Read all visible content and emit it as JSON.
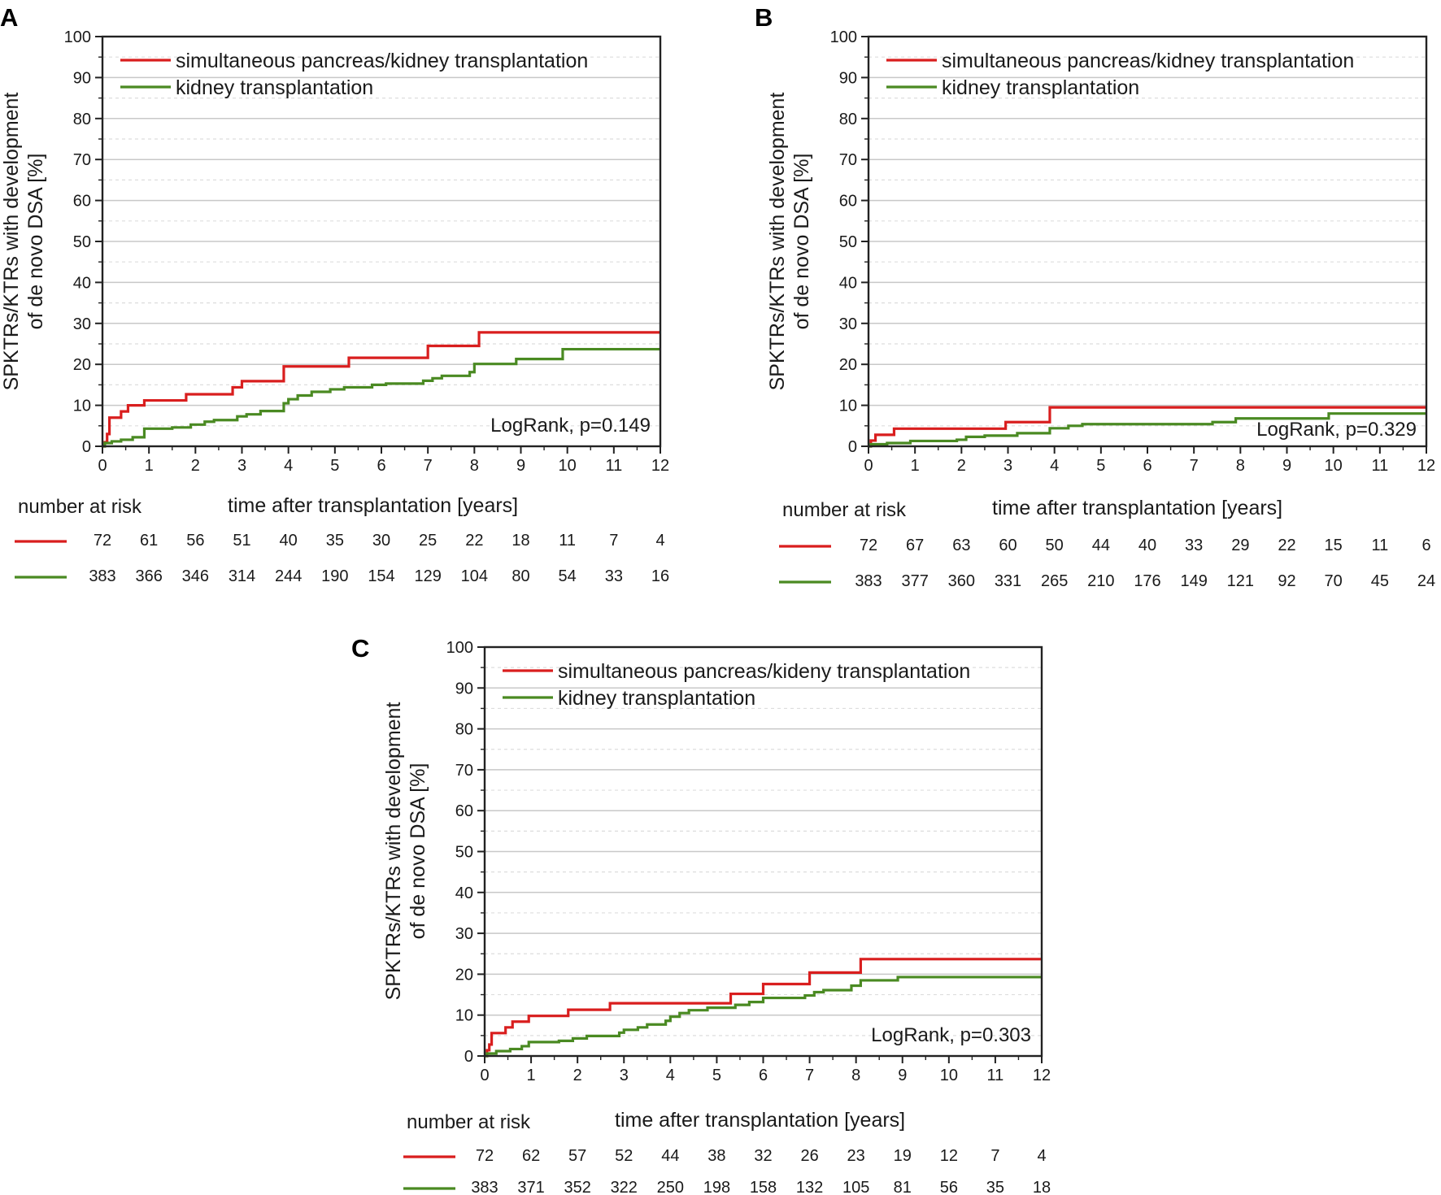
{
  "colors": {
    "spk": "#d91e1e",
    "kidney": "#4a8a22"
  },
  "shared": {
    "ylabel_line1": "SPKTRs/KTRs with development",
    "ylabel_line2": "of de novo DSA [%]",
    "risk_title": "number at risk",
    "xlabel": "time after transplantation [years]"
  },
  "chart_data": [
    {
      "panel": "A",
      "type": "line",
      "title": "",
      "xlabel": "time after transplantation [years]",
      "ylabel": "SPKTRs/KTRs with development of de novo DSA [%]",
      "xlim": [
        0,
        12
      ],
      "ylim": [
        0,
        100
      ],
      "x_ticks": [
        "0",
        "1",
        "2",
        "3",
        "4",
        "5",
        "6",
        "7",
        "8",
        "9",
        "10",
        "11",
        "12"
      ],
      "y_ticks": [
        "0",
        "10",
        "20",
        "30",
        "40",
        "50",
        "60",
        "70",
        "80",
        "90",
        "100"
      ],
      "grid": "horizontal",
      "legend_position": "top-left",
      "annotation": "LogRank, p=0.149",
      "series": [
        {
          "name": "simultaneous pancreas/kidney transplantation",
          "steps": [
            [
              0,
              0
            ],
            [
              0.05,
              1
            ],
            [
              0.1,
              3
            ],
            [
              0.15,
              7
            ],
            [
              0.4,
              8.5
            ],
            [
              0.55,
              10
            ],
            [
              0.9,
              11.2
            ],
            [
              1.8,
              12.7
            ],
            [
              2.8,
              14.4
            ],
            [
              3.0,
              15.9
            ],
            [
              3.9,
              19.5
            ],
            [
              5.3,
              21.6
            ],
            [
              7.0,
              24.5
            ],
            [
              8.1,
              27.8
            ],
            [
              12,
              27.8
            ]
          ],
          "at_risk": [
            "72",
            "61",
            "56",
            "51",
            "40",
            "35",
            "30",
            "25",
            "22",
            "18",
            "11",
            "7",
            "4"
          ]
        },
        {
          "name": "kidney transplantation",
          "steps": [
            [
              0,
              0
            ],
            [
              0.05,
              0.8
            ],
            [
              0.2,
              1.2
            ],
            [
              0.4,
              1.6
            ],
            [
              0.65,
              2.2
            ],
            [
              0.9,
              4.3
            ],
            [
              1.5,
              4.6
            ],
            [
              1.9,
              5.3
            ],
            [
              2.2,
              6.0
            ],
            [
              2.4,
              6.4
            ],
            [
              2.9,
              7.3
            ],
            [
              3.1,
              7.8
            ],
            [
              3.4,
              8.6
            ],
            [
              3.9,
              10.5
            ],
            [
              4.0,
              11.5
            ],
            [
              4.2,
              12.4
            ],
            [
              4.5,
              13.3
            ],
            [
              4.9,
              13.9
            ],
            [
              5.2,
              14.4
            ],
            [
              5.8,
              15.0
            ],
            [
              6.1,
              15.3
            ],
            [
              6.9,
              16.0
            ],
            [
              7.1,
              16.6
            ],
            [
              7.3,
              17.2
            ],
            [
              7.9,
              18.1
            ],
            [
              8.0,
              20.1
            ],
            [
              8.9,
              21.3
            ],
            [
              9.9,
              23.7
            ],
            [
              12,
              23.7
            ]
          ],
          "at_risk": [
            "383",
            "366",
            "346",
            "314",
            "244",
            "190",
            "154",
            "129",
            "104",
            "80",
            "54",
            "33",
            "16"
          ]
        }
      ]
    },
    {
      "panel": "B",
      "type": "line",
      "title": "",
      "xlabel": "time after transplantation [years]",
      "ylabel": "SPKTRs/KTRs with development of de novo DSA [%]",
      "xlim": [
        0,
        12
      ],
      "ylim": [
        0,
        100
      ],
      "x_ticks": [
        "0",
        "1",
        "2",
        "3",
        "4",
        "5",
        "6",
        "7",
        "8",
        "9",
        "10",
        "11",
        "12"
      ],
      "y_ticks": [
        "0",
        "10",
        "20",
        "30",
        "40",
        "50",
        "60",
        "70",
        "80",
        "90",
        "100"
      ],
      "grid": "horizontal",
      "legend_position": "top-left",
      "annotation": "LogRank, p=0.329",
      "series": [
        {
          "name": "simultaneous pancreas/kidney transplantation",
          "steps": [
            [
              0,
              0
            ],
            [
              0.05,
              1.4
            ],
            [
              0.15,
              2.8
            ],
            [
              0.55,
              4.3
            ],
            [
              2.95,
              5.9
            ],
            [
              3.9,
              9.5
            ],
            [
              12,
              9.5
            ]
          ],
          "at_risk": [
            "72",
            "67",
            "63",
            "60",
            "50",
            "44",
            "40",
            "33",
            "29",
            "22",
            "15",
            "11",
            "6"
          ]
        },
        {
          "name": "kidney transplantation",
          "steps": [
            [
              0,
              0
            ],
            [
              0.05,
              0.5
            ],
            [
              0.4,
              0.8
            ],
            [
              0.9,
              1.3
            ],
            [
              1.9,
              1.6
            ],
            [
              2.1,
              2.3
            ],
            [
              2.5,
              2.6
            ],
            [
              3.2,
              3.2
            ],
            [
              3.9,
              4.4
            ],
            [
              4.3,
              5.0
            ],
            [
              4.6,
              5.4
            ],
            [
              7.4,
              5.9
            ],
            [
              7.9,
              6.8
            ],
            [
              9.9,
              8.0
            ],
            [
              12,
              8.0
            ]
          ],
          "at_risk": [
            "383",
            "377",
            "360",
            "331",
            "265",
            "210",
            "176",
            "149",
            "121",
            "92",
            "70",
            "45",
            "24"
          ]
        }
      ]
    },
    {
      "panel": "C",
      "type": "line",
      "title": "",
      "xlabel": "time after transplantation [years]",
      "ylabel": "SPKTRs/KTRs with development of de novo DSA [%]",
      "xlim": [
        0,
        12
      ],
      "ylim": [
        0,
        100
      ],
      "x_ticks": [
        "0",
        "1",
        "2",
        "3",
        "4",
        "5",
        "6",
        "7",
        "8",
        "9",
        "10",
        "11",
        "12"
      ],
      "y_ticks": [
        "0",
        "10",
        "20",
        "30",
        "40",
        "50",
        "60",
        "70",
        "80",
        "90",
        "100"
      ],
      "grid": "horizontal",
      "legend_position": "top-left",
      "annotation": "LogRank, p=0.303",
      "series": [
        {
          "name": "simultaneous pancreas/kideny transplantation",
          "steps": [
            [
              0,
              0
            ],
            [
              0.05,
              1.4
            ],
            [
              0.1,
              2.8
            ],
            [
              0.15,
              5.6
            ],
            [
              0.45,
              7.0
            ],
            [
              0.6,
              8.4
            ],
            [
              0.95,
              9.8
            ],
            [
              1.8,
              11.3
            ],
            [
              2.7,
              12.9
            ],
            [
              5.3,
              15.2
            ],
            [
              6.0,
              17.6
            ],
            [
              7.0,
              20.4
            ],
            [
              8.1,
              23.7
            ],
            [
              12,
              23.7
            ]
          ],
          "at_risk": [
            "72",
            "62",
            "57",
            "52",
            "44",
            "38",
            "32",
            "26",
            "23",
            "19",
            "12",
            "7",
            "4"
          ]
        },
        {
          "name": "kidney transplantation",
          "steps": [
            [
              0,
              0
            ],
            [
              0.05,
              0.6
            ],
            [
              0.25,
              1.2
            ],
            [
              0.55,
              1.7
            ],
            [
              0.8,
              2.4
            ],
            [
              0.95,
              3.4
            ],
            [
              1.6,
              3.7
            ],
            [
              1.9,
              4.3
            ],
            [
              2.2,
              4.9
            ],
            [
              2.9,
              5.7
            ],
            [
              3.0,
              6.4
            ],
            [
              3.3,
              7.0
            ],
            [
              3.5,
              7.7
            ],
            [
              3.9,
              8.6
            ],
            [
              4.0,
              9.6
            ],
            [
              4.2,
              10.5
            ],
            [
              4.4,
              11.2
            ],
            [
              4.8,
              11.8
            ],
            [
              5.4,
              12.5
            ],
            [
              5.7,
              13.2
            ],
            [
              6.0,
              14.2
            ],
            [
              6.9,
              14.8
            ],
            [
              7.1,
              15.6
            ],
            [
              7.3,
              16.1
            ],
            [
              7.9,
              17.2
            ],
            [
              8.1,
              18.5
            ],
            [
              8.9,
              19.3
            ],
            [
              12,
              19.3
            ]
          ],
          "at_risk": [
            "383",
            "371",
            "352",
            "322",
            "250",
            "198",
            "158",
            "132",
            "105",
            "81",
            "56",
            "35",
            "18"
          ]
        }
      ]
    }
  ]
}
